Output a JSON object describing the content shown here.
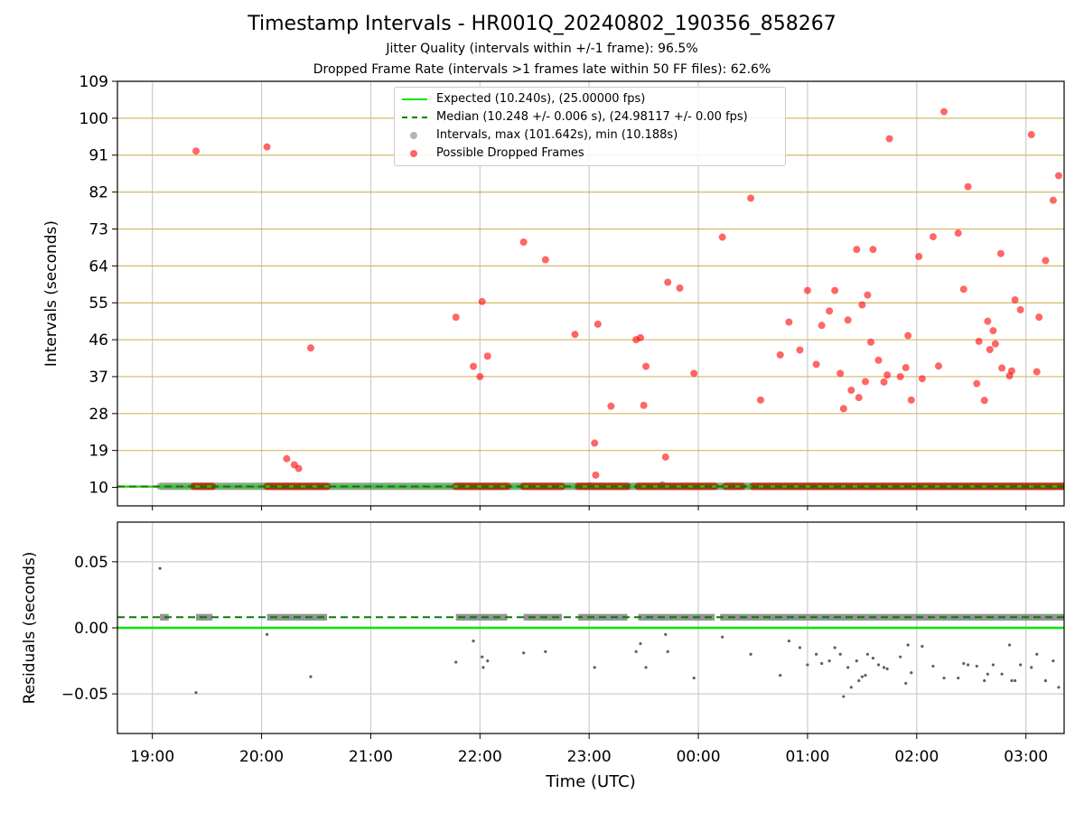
{
  "title": "Timestamp Intervals - HR001Q_20240802_190356_858267",
  "subtitle_1": "Jitter Quality (intervals within +/-1 frame): 96.5%",
  "subtitle_2": "Dropped Frame Rate (intervals >1 frames late within 50 FF files): 62.6%",
  "colors": {
    "expected": "#00e600",
    "median": "#008000",
    "intervals": "#808080",
    "dropped": "#ff0000",
    "hgrid_top": "#d4b86a",
    "grid": "#cccccc"
  },
  "legend": {
    "expected": "Expected (10.240s), (25.00000 fps)",
    "median": "Median (10.248 +/- 0.006 s), (24.98117 +/- 0.00 fps)",
    "intervals": "Intervals, max (101.642s), min (10.188s)",
    "dropped": "Possible Dropped Frames"
  },
  "chart_data": [
    {
      "type": "scatter",
      "panel": "top",
      "ylabel": "Intervals (seconds)",
      "xlabel": "",
      "x_unit": "hours since 00:00 UTC (values > 24 are the following day)",
      "xlim": [
        18.68,
        27.35
      ],
      "ylim": [
        5.5,
        109
      ],
      "yticks": [
        10,
        19,
        28,
        37,
        46,
        55,
        64,
        73,
        82,
        91,
        100,
        109
      ],
      "grid": true,
      "legend_position": "upper center",
      "expected_interval": 10.24,
      "median_interval": 10.248,
      "series": [
        {
          "name": "Intervals, max (101.642s), min (10.188s)",
          "x_ranges": [
            [
              19.07,
              27.35
            ]
          ],
          "baseline_value": 10.25,
          "values": [
            [
              23.0,
              10.5
            ],
            [
              23.67,
              10.8
            ]
          ]
        },
        {
          "name": "Possible Dropped Frames",
          "baseline_runs": [
            [
              19.38,
              19.55
            ],
            [
              20.05,
              20.6
            ],
            [
              21.78,
              22.25
            ],
            [
              22.4,
              22.75
            ],
            [
              22.9,
              23.35
            ],
            [
              23.45,
              24.15
            ],
            [
              24.25,
              24.4
            ],
            [
              24.5,
              27.35
            ]
          ],
          "baseline_value": 10.25,
          "values": [
            [
              19.4,
              92
            ],
            [
              20.05,
              93
            ],
            [
              20.23,
              17
            ],
            [
              20.3,
              15.5
            ],
            [
              20.34,
              14.6
            ],
            [
              20.45,
              44
            ],
            [
              21.78,
              51.5
            ],
            [
              21.94,
              39.5
            ],
            [
              22.0,
              37
            ],
            [
              22.02,
              55.3
            ],
            [
              22.07,
              42
            ],
            [
              22.4,
              69.8
            ],
            [
              22.6,
              65.5
            ],
            [
              22.87,
              47.3
            ],
            [
              23.05,
              20.8
            ],
            [
              23.06,
              13
            ],
            [
              23.08,
              49.8
            ],
            [
              23.2,
              29.8
            ],
            [
              23.43,
              46
            ],
            [
              23.47,
              46.5
            ],
            [
              23.5,
              30
            ],
            [
              23.52,
              39.5
            ],
            [
              23.7,
              17.4
            ],
            [
              23.72,
              60
            ],
            [
              23.83,
              58.6
            ],
            [
              23.96,
              37.8
            ],
            [
              24.22,
              71
            ],
            [
              24.48,
              80.5
            ],
            [
              24.57,
              31.3
            ],
            [
              24.75,
              42.3
            ],
            [
              24.83,
              50.3
            ],
            [
              24.93,
              43.5
            ],
            [
              25.0,
              58
            ],
            [
              25.08,
              40
            ],
            [
              25.13,
              49.5
            ],
            [
              25.2,
              53
            ],
            [
              25.25,
              58
            ],
            [
              25.3,
              37.8
            ],
            [
              25.33,
              29.2
            ],
            [
              25.37,
              50.8
            ],
            [
              25.4,
              33.7
            ],
            [
              25.45,
              68
            ],
            [
              25.47,
              31.9
            ],
            [
              25.5,
              54.5
            ],
            [
              25.53,
              35.8
            ],
            [
              25.55,
              56.9
            ],
            [
              25.58,
              45.4
            ],
            [
              25.6,
              68
            ],
            [
              25.65,
              41
            ],
            [
              25.7,
              35.7
            ],
            [
              25.73,
              37.4
            ],
            [
              25.75,
              95
            ],
            [
              25.85,
              37
            ],
            [
              25.9,
              39.2
            ],
            [
              25.92,
              47
            ],
            [
              25.95,
              31.3
            ],
            [
              26.02,
              66.3
            ],
            [
              26.05,
              36.5
            ],
            [
              26.15,
              71.1
            ],
            [
              26.2,
              39.6
            ],
            [
              26.25,
              101.6
            ],
            [
              26.38,
              72
            ],
            [
              26.43,
              58.3
            ],
            [
              26.47,
              83.3
            ],
            [
              26.55,
              35.3
            ],
            [
              26.57,
              45.6
            ],
            [
              26.62,
              31.2
            ],
            [
              26.65,
              50.5
            ],
            [
              26.67,
              43.6
            ],
            [
              26.7,
              48.2
            ],
            [
              26.72,
              45
            ],
            [
              26.77,
              67
            ],
            [
              26.78,
              39.1
            ],
            [
              26.85,
              37.2
            ],
            [
              26.87,
              38.4
            ],
            [
              26.9,
              55.7
            ],
            [
              26.95,
              53.3
            ],
            [
              27.05,
              96
            ],
            [
              27.1,
              38.2
            ],
            [
              27.12,
              51.5
            ],
            [
              27.18,
              65.3
            ],
            [
              27.25,
              80
            ],
            [
              27.3,
              86
            ]
          ]
        }
      ]
    },
    {
      "type": "scatter",
      "panel": "bottom",
      "ylabel": "Residuals (seconds)",
      "xlabel": "Time (UTC)",
      "x_unit": "hours since 00:00 UTC (values > 24 are the following day)",
      "xlim": [
        18.68,
        27.35
      ],
      "ylim": [
        -0.08,
        0.08
      ],
      "yticks": [
        0.05,
        0.0,
        -0.05
      ],
      "ytick_labels": [
        "0.05",
        "0.00",
        "−0.05"
      ],
      "xticks": [
        19,
        20,
        21,
        22,
        23,
        24,
        25,
        26,
        27
      ],
      "xtick_labels": [
        "19:00",
        "20:00",
        "21:00",
        "22:00",
        "23:00",
        "00:00",
        "01:00",
        "02:00",
        "03:00"
      ],
      "grid": true,
      "expected_residual": 0.0,
      "median_residual": 0.008,
      "series": [
        {
          "name": "Residuals",
          "band_center": 0.008,
          "band_runs": [
            [
              19.07,
              19.15
            ],
            [
              19.4,
              19.55
            ],
            [
              20.05,
              20.6
            ],
            [
              21.78,
              22.25
            ],
            [
              22.4,
              22.75
            ],
            [
              22.9,
              23.35
            ],
            [
              23.45,
              24.15
            ],
            [
              24.2,
              27.35
            ]
          ],
          "values": [
            [
              19.07,
              0.045
            ],
            [
              19.4,
              -0.049
            ],
            [
              20.05,
              -0.005
            ],
            [
              20.45,
              -0.037
            ],
            [
              21.78,
              -0.026
            ],
            [
              21.94,
              -0.01
            ],
            [
              22.02,
              -0.022
            ],
            [
              22.03,
              -0.03
            ],
            [
              22.07,
              -0.025
            ],
            [
              22.4,
              -0.019
            ],
            [
              22.6,
              -0.018
            ],
            [
              23.05,
              -0.03
            ],
            [
              23.43,
              -0.018
            ],
            [
              23.47,
              -0.012
            ],
            [
              23.52,
              -0.03
            ],
            [
              23.7,
              -0.005
            ],
            [
              23.72,
              -0.018
            ],
            [
              23.96,
              -0.038
            ],
            [
              24.22,
              -0.007
            ],
            [
              24.48,
              -0.02
            ],
            [
              24.75,
              -0.036
            ],
            [
              24.83,
              -0.01
            ],
            [
              24.93,
              -0.015
            ],
            [
              25.0,
              -0.028
            ],
            [
              25.08,
              -0.02
            ],
            [
              25.13,
              -0.027
            ],
            [
              25.2,
              -0.025
            ],
            [
              25.25,
              -0.015
            ],
            [
              25.3,
              -0.02
            ],
            [
              25.33,
              -0.052
            ],
            [
              25.37,
              -0.03
            ],
            [
              25.4,
              -0.045
            ],
            [
              25.45,
              -0.025
            ],
            [
              25.47,
              -0.04
            ],
            [
              25.5,
              -0.037
            ],
            [
              25.53,
              -0.036
            ],
            [
              25.55,
              -0.02
            ],
            [
              25.6,
              -0.023
            ],
            [
              25.65,
              -0.028
            ],
            [
              25.7,
              -0.03
            ],
            [
              25.73,
              -0.031
            ],
            [
              25.85,
              -0.022
            ],
            [
              25.9,
              -0.042
            ],
            [
              25.92,
              -0.013
            ],
            [
              25.95,
              -0.034
            ],
            [
              26.05,
              -0.014
            ],
            [
              26.15,
              -0.029
            ],
            [
              26.25,
              -0.038
            ],
            [
              26.38,
              -0.038
            ],
            [
              26.43,
              -0.027
            ],
            [
              26.47,
              -0.028
            ],
            [
              26.55,
              -0.029
            ],
            [
              26.62,
              -0.04
            ],
            [
              26.65,
              -0.035
            ],
            [
              26.7,
              -0.028
            ],
            [
              26.78,
              -0.035
            ],
            [
              26.85,
              -0.013
            ],
            [
              26.87,
              -0.04
            ],
            [
              26.9,
              -0.04
            ],
            [
              26.95,
              -0.028
            ],
            [
              27.05,
              -0.03
            ],
            [
              27.1,
              -0.02
            ],
            [
              27.18,
              -0.04
            ],
            [
              27.25,
              -0.025
            ],
            [
              27.3,
              -0.045
            ]
          ]
        }
      ]
    }
  ]
}
